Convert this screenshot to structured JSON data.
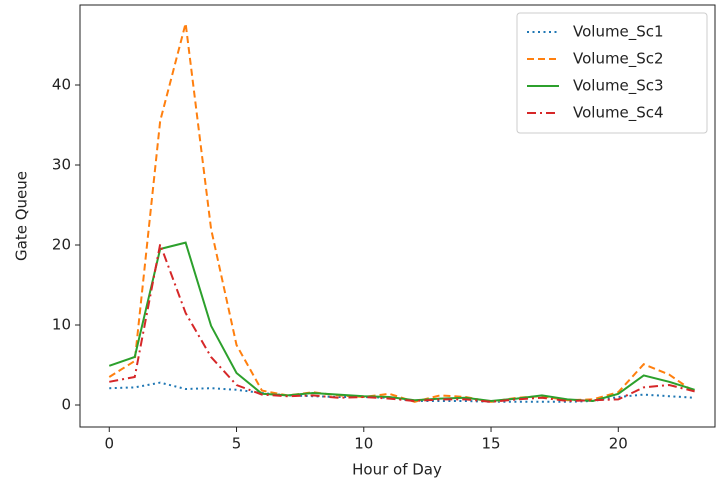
{
  "chart_data": {
    "type": "line",
    "xlabel": "Hour of Day",
    "ylabel": "Gate Queue",
    "x": [
      0,
      1,
      2,
      3,
      4,
      5,
      6,
      7,
      8,
      9,
      10,
      11,
      12,
      13,
      14,
      15,
      16,
      17,
      18,
      19,
      20,
      21,
      22,
      23
    ],
    "series": [
      {
        "name": "Volume_Sc1",
        "color": "#1f77b4",
        "linestyle": "dotted",
        "values": [
          2.1,
          2.2,
          2.8,
          2.0,
          2.1,
          1.9,
          1.5,
          1.2,
          1.1,
          1.0,
          1.0,
          0.9,
          0.5,
          0.5,
          0.5,
          0.4,
          0.4,
          0.4,
          0.4,
          0.5,
          1.0,
          1.3,
          1.1,
          0.9
        ]
      },
      {
        "name": "Volume_Sc2",
        "color": "#ff7f0e",
        "linestyle": "dashed",
        "values": [
          3.5,
          5.5,
          35.5,
          47.7,
          22,
          7.5,
          1.8,
          1.2,
          1.6,
          1.2,
          1.0,
          1.4,
          0.4,
          1.2,
          1.0,
          0.4,
          0.9,
          1.1,
          0.6,
          0.7,
          1.6,
          5.1,
          3.8,
          1.6
        ]
      },
      {
        "name": "Volume_Sc3",
        "color": "#2ca02c",
        "linestyle": "solid",
        "values": [
          4.9,
          6.0,
          19.5,
          20.3,
          9.9,
          4.0,
          1.4,
          1.2,
          1.5,
          1.3,
          1.1,
          1.0,
          0.6,
          0.8,
          0.9,
          0.5,
          0.8,
          1.2,
          0.7,
          0.5,
          1.4,
          3.7,
          2.9,
          1.9
        ]
      },
      {
        "name": "Volume_Sc4",
        "color": "#d62728",
        "linestyle": "dashdot",
        "values": [
          2.9,
          3.5,
          20.1,
          11.5,
          6.0,
          2.5,
          1.3,
          1.1,
          1.2,
          0.9,
          1.0,
          0.8,
          0.5,
          0.7,
          0.7,
          0.4,
          0.7,
          0.9,
          0.5,
          0.6,
          0.7,
          2.2,
          2.5,
          1.7
        ]
      }
    ],
    "xlim": [
      -1.15,
      23.8
    ],
    "ylim": [
      -2.75,
      50
    ],
    "xticks": [
      0,
      5,
      10,
      15,
      20
    ],
    "yticks": [
      0,
      10,
      20,
      30,
      40
    ],
    "legend": "upper right"
  }
}
